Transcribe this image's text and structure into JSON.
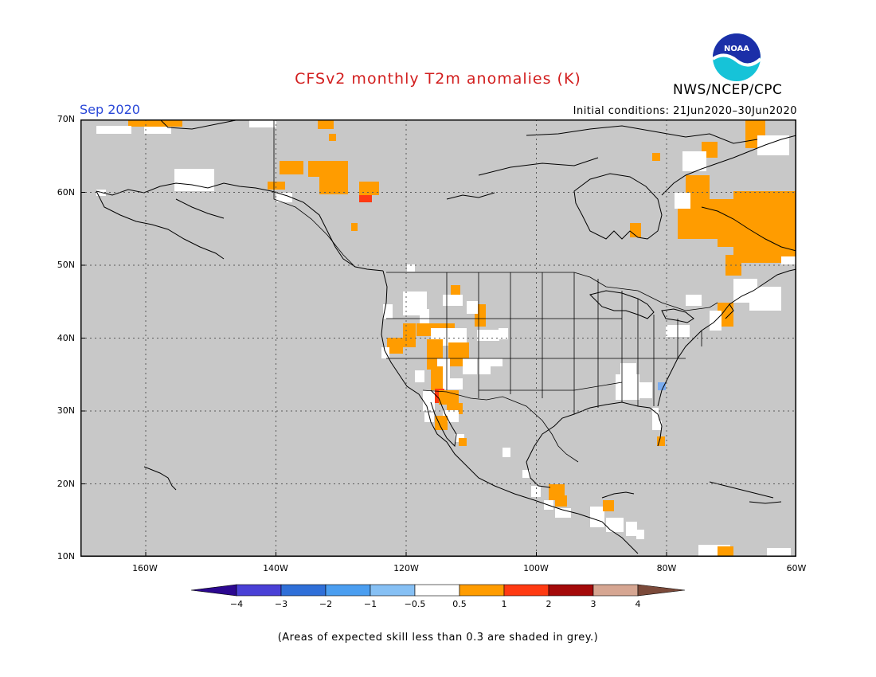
{
  "header": {
    "title": "CFSv2 monthly T2m anomalies (K)",
    "organization": "NWS/NCEP/CPC",
    "month": "Sep 2020",
    "initial_conditions": "Initial conditions: 21Jun2020–30Jun2020",
    "logo_text": "NOAA"
  },
  "map": {
    "background_color": "#c8c8c8",
    "lat_labels": [
      "70N",
      "60N",
      "50N",
      "40N",
      "30N",
      "20N",
      "10N"
    ],
    "lon_labels": [
      "160W",
      "140W",
      "120W",
      "100W",
      "80W",
      "60W"
    ]
  },
  "colorbar": {
    "labels": [
      "−4",
      "−3",
      "−2",
      "−1",
      "−0.5",
      "0.5",
      "1",
      "2",
      "3",
      "4"
    ],
    "colors": [
      "#2c0890",
      "#4a40d6",
      "#2f6fd8",
      "#4b9ef0",
      "#86c0f4",
      "#ffffff",
      "#ff9c00",
      "#ff3a12",
      "#a40a0a",
      "#d6a692",
      "#7b4a3a"
    ]
  },
  "footer": {
    "note": "(Areas of expected skill less than 0.3 are shaded in grey.)"
  },
  "legend_colors": {
    "white": "#ffffff",
    "orange": "#ff9c00",
    "red": "#ff3a12",
    "blue": "#7aacf0"
  }
}
